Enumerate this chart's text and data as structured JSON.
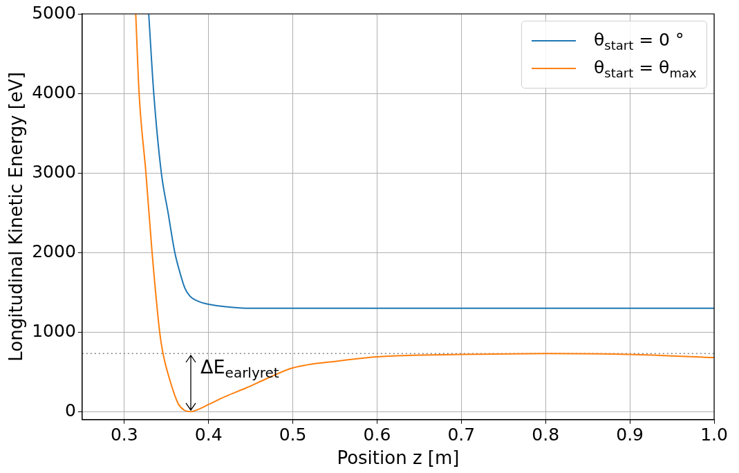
{
  "chart_data": {
    "type": "line",
    "xlabel": "Position z [m]",
    "ylabel": "Longitudinal Kinetic Energy [eV]",
    "xlim": [
      0.25,
      1.0
    ],
    "xticks": [
      0.3,
      0.4,
      0.5,
      0.6,
      0.7,
      0.8,
      0.9,
      {
        "value": 1.0,
        "label": "1.0"
      }
    ],
    "ylim": [
      -100,
      5000
    ],
    "yticks": [
      0,
      1000,
      2000,
      3000,
      4000,
      5000
    ],
    "grid": true,
    "legend": "top right",
    "marker": "none",
    "line_style": "solid",
    "series": [
      {
        "name": "θ$_{start}$ = 0 °",
        "color": "#1f77b4",
        "x": [
          0.329,
          0.335,
          0.344,
          0.352,
          0.36,
          0.366,
          0.372,
          0.378,
          0.385,
          0.392,
          0.4,
          0.42,
          0.45,
          0.5,
          0.6,
          0.8,
          1.0
        ],
        "values": [
          5000,
          4000,
          3000,
          2500,
          2000,
          1750,
          1550,
          1450,
          1400,
          1370,
          1350,
          1320,
          1300,
          1300,
          1300,
          1300,
          1300
        ]
      },
      {
        "name": "θ$_{start}$ = θ$_{max}$",
        "color": "#ff7f0e",
        "x": [
          0.3136,
          0.3176,
          0.3257,
          0.333,
          0.342,
          0.346,
          0.354,
          0.364,
          0.371,
          0.379,
          0.388,
          0.4,
          0.42,
          0.445,
          0.47,
          0.5,
          0.556,
          0.6,
          0.7,
          0.8,
          0.9,
          1.0
        ],
        "values": [
          5000,
          4000,
          3000,
          2000,
          1000,
          730,
          400,
          100,
          20,
          0,
          30,
          90,
          190,
          300,
          420,
          550,
          640,
          690,
          720,
          730,
          720,
          680
        ]
      }
    ],
    "ref_lines": [
      {
        "axis": "y",
        "value": 730,
        "color": "#808080",
        "line_style": "dotted"
      }
    ],
    "annotations": [
      {
        "text": "ΔE$_{earlyret}$",
        "x": 0.379,
        "y": 0
      }
    ]
  }
}
